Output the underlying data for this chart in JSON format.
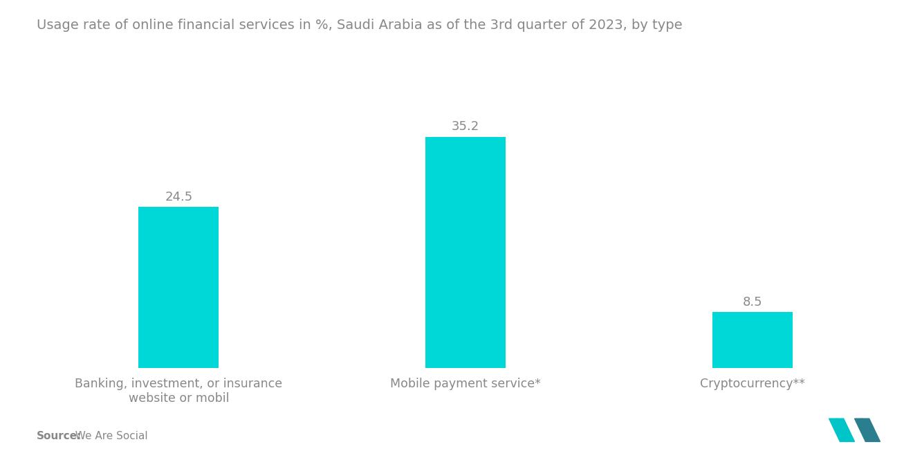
{
  "title": "Usage rate of online financial services in %, Saudi Arabia as of the 3rd quarter of 2023, by type",
  "categories": [
    "Banking, investment, or insurance\nwebsite or mobil",
    "Mobile payment service*",
    "Cryptocurrency**"
  ],
  "values": [
    24.5,
    35.2,
    8.5
  ],
  "bar_color": "#00D8D8",
  "value_labels": [
    "24.5",
    "35.2",
    "8.5"
  ],
  "title_fontsize": 14,
  "label_fontsize": 12.5,
  "value_fontsize": 13,
  "source_label": "Source:",
  "source_value": "  We Are Social",
  "background_color": "#ffffff",
  "text_color": "#888888",
  "ylim": [
    0,
    42
  ],
  "bar_positions": [
    0,
    1,
    2
  ],
  "bar_width": 0.28
}
